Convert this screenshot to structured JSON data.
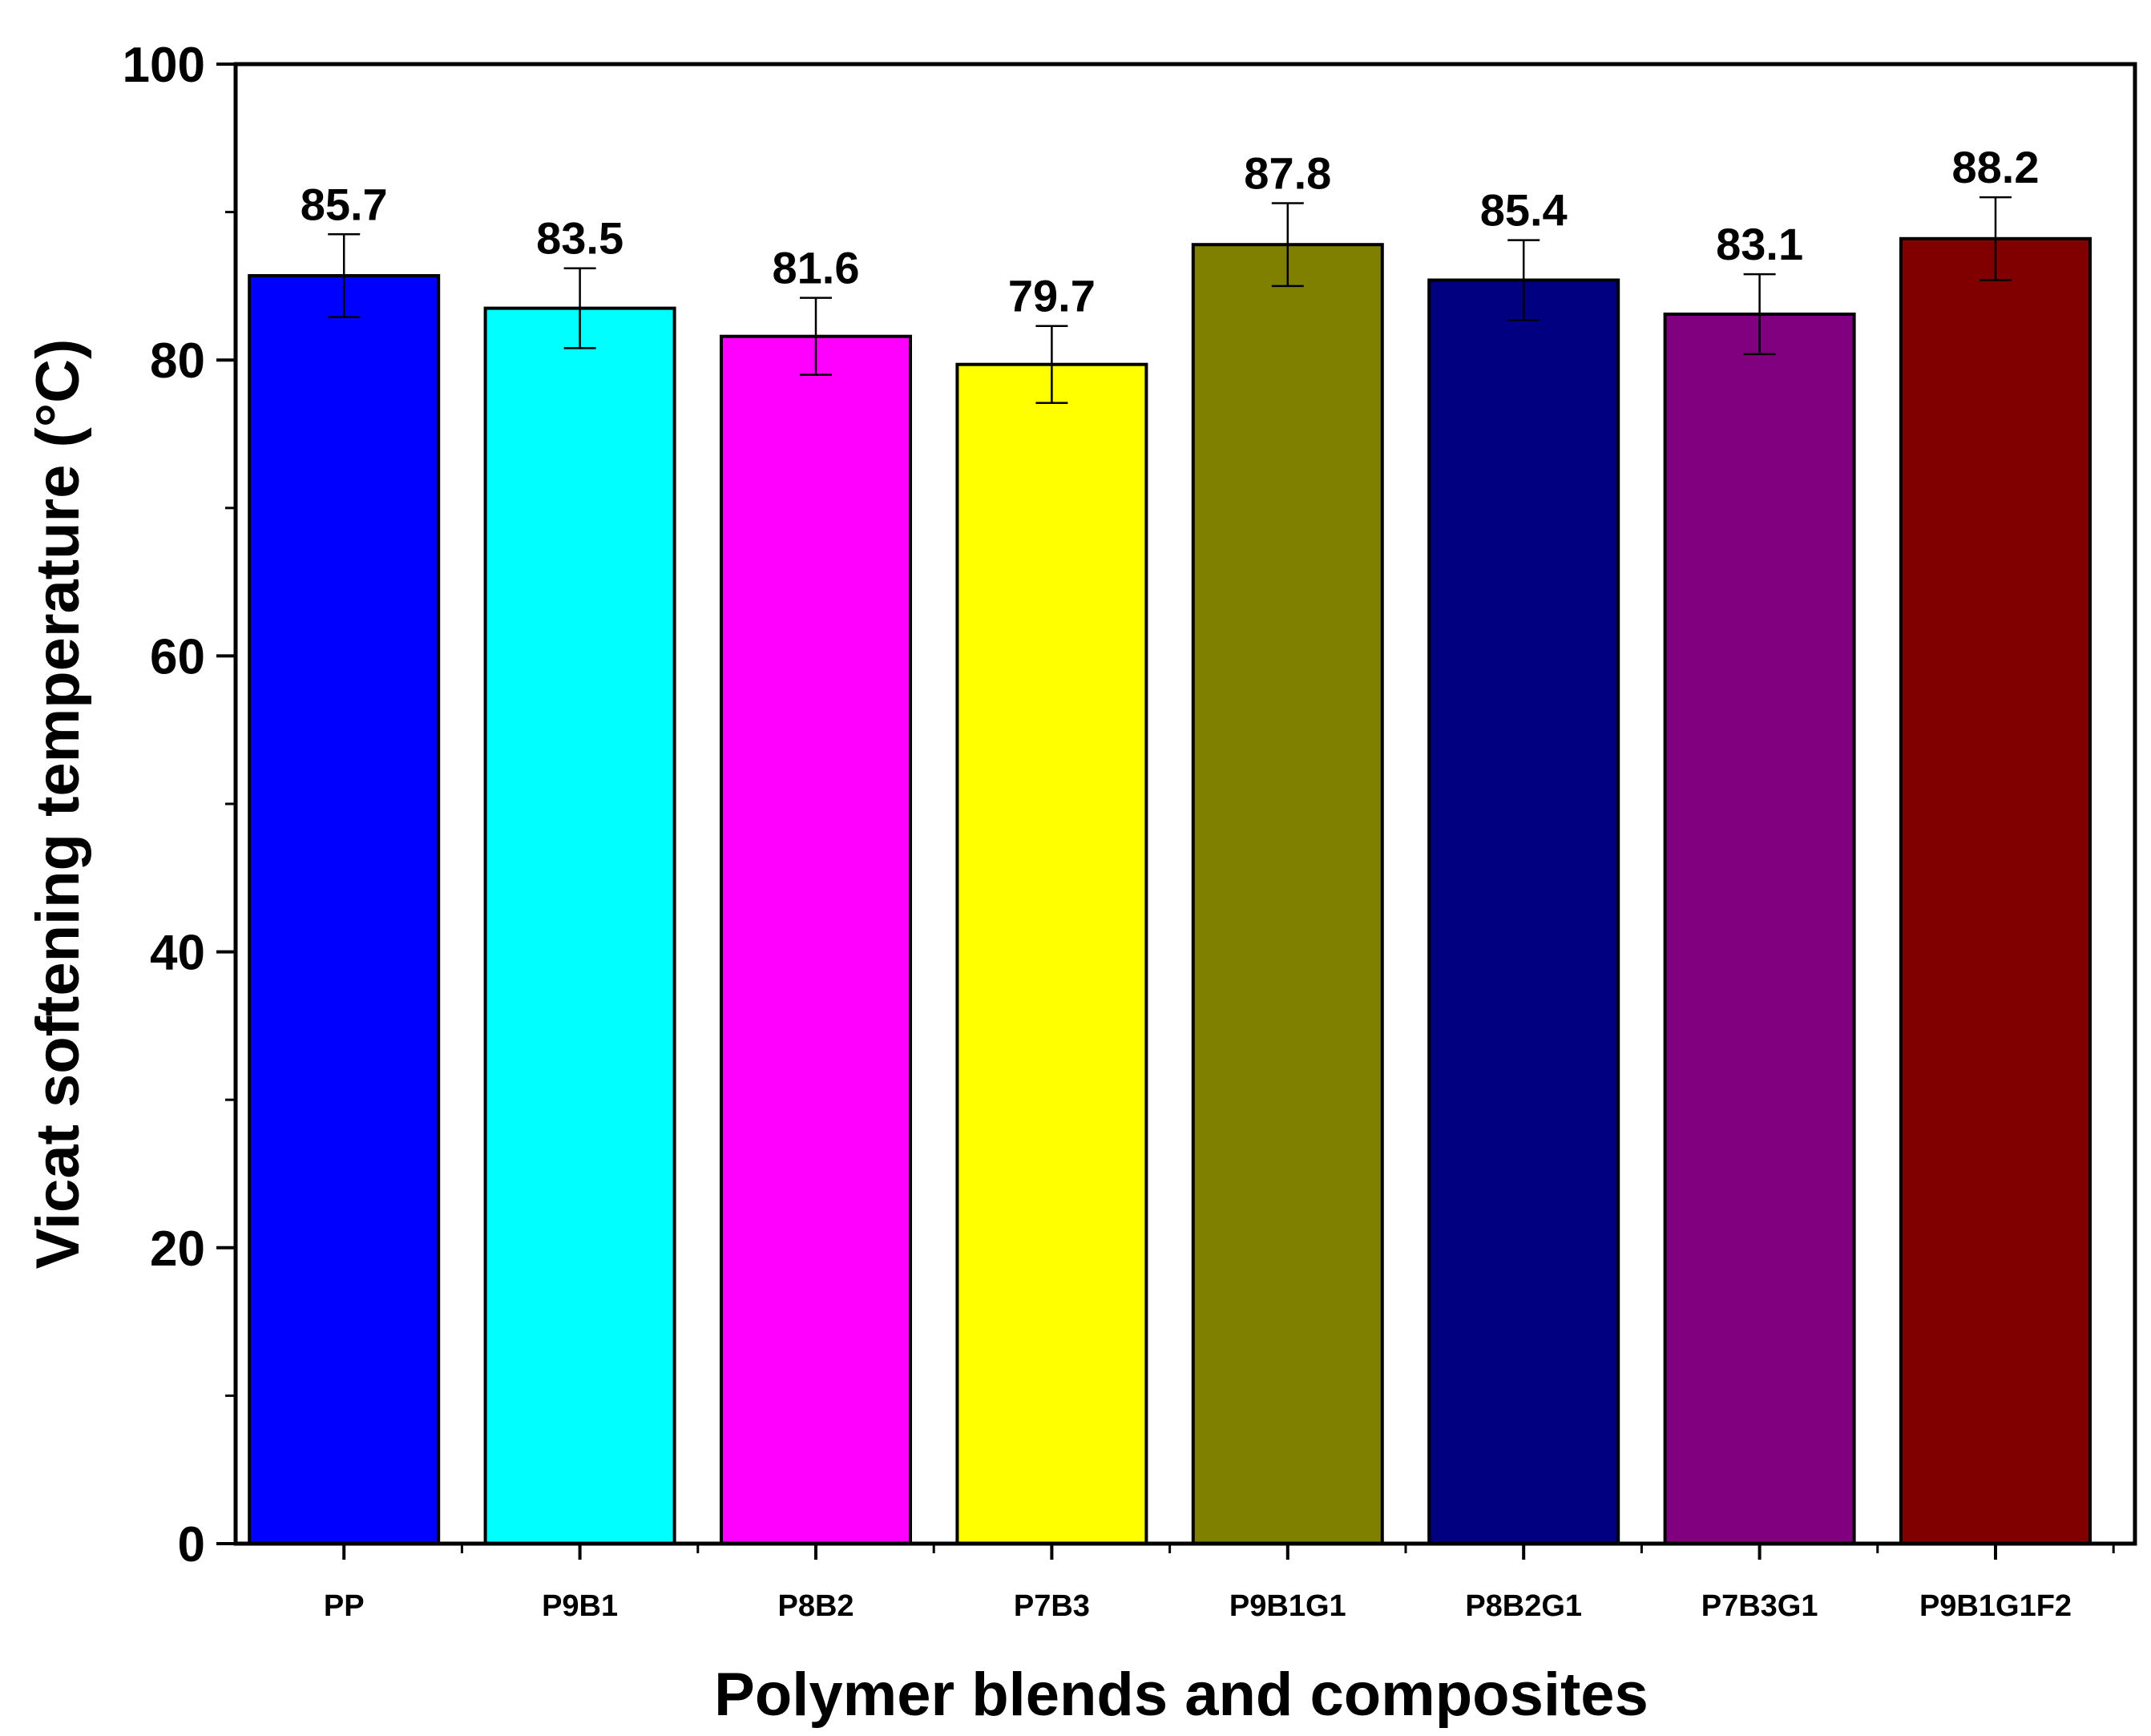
{
  "chart_data": {
    "type": "bar",
    "title": "",
    "xlabel": "Polymer blends and composites",
    "ylabel": "Vicat softening temperature (°C)",
    "ylim": [
      0,
      100
    ],
    "y_major_ticks": [
      0,
      20,
      40,
      60,
      80,
      100
    ],
    "y_tick_labels": [
      "0",
      "20",
      "40",
      "60",
      "80",
      "100"
    ],
    "y_minor_step": 10,
    "grid": false,
    "legend": "none",
    "categories": [
      "PP",
      "P9B1",
      "P8B2",
      "P7B3",
      "P9B1G1",
      "P8B2G1",
      "P7B3G1",
      "P9B1G1F2"
    ],
    "values": [
      85.7,
      83.5,
      81.6,
      79.7,
      87.8,
      85.4,
      83.1,
      88.2
    ],
    "data_labels": [
      "85.7",
      "83.5",
      "81.6",
      "79.7",
      "87.8",
      "85.4",
      "83.1",
      "88.2"
    ],
    "errors": [
      2.8,
      2.7,
      2.6,
      2.6,
      2.8,
      2.7,
      2.7,
      2.8
    ],
    "colors": [
      "#0000FF",
      "#00FFFF",
      "#FF00FF",
      "#FFFF00",
      "#808000",
      "#000080",
      "#800080",
      "#800000"
    ]
  }
}
